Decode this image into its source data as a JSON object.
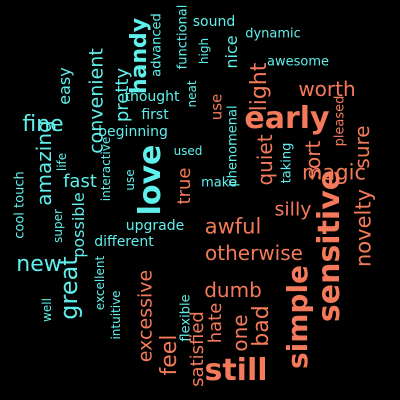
{
  "colors": {
    "background": "#000000",
    "cyan": "#5ff0ec",
    "coral": "#f47a5b"
  },
  "words": [
    {
      "text": "sound",
      "color": "cyan"
    },
    {
      "text": "dynamic",
      "color": "cyan"
    },
    {
      "text": "functional",
      "color": "cyan"
    },
    {
      "text": "high",
      "color": "cyan"
    },
    {
      "text": "advanced",
      "color": "cyan"
    },
    {
      "text": "handy",
      "color": "cyan"
    },
    {
      "text": "nice",
      "color": "cyan"
    },
    {
      "text": "awesome",
      "color": "cyan"
    },
    {
      "text": "easy",
      "color": "cyan"
    },
    {
      "text": "convenient",
      "color": "cyan"
    },
    {
      "text": "pretty",
      "color": "cyan"
    },
    {
      "text": "thought",
      "color": "cyan"
    },
    {
      "text": "neat",
      "color": "cyan"
    },
    {
      "text": "light",
      "color": "coral"
    },
    {
      "text": "worth",
      "color": "coral"
    },
    {
      "text": "fine",
      "color": "cyan"
    },
    {
      "text": "first",
      "color": "cyan"
    },
    {
      "text": "use",
      "color": "coral"
    },
    {
      "text": "early",
      "color": "coral"
    },
    {
      "text": "pleased",
      "color": "coral"
    },
    {
      "text": "amazing",
      "color": "cyan"
    },
    {
      "text": "beginning",
      "color": "cyan"
    },
    {
      "text": "phenomenal",
      "color": "cyan"
    },
    {
      "text": "sure",
      "color": "coral"
    },
    {
      "text": "life",
      "color": "cyan"
    },
    {
      "text": "interactive",
      "color": "cyan"
    },
    {
      "text": "used",
      "color": "cyan"
    },
    {
      "text": "quiet",
      "color": "coral"
    },
    {
      "text": "sort",
      "color": "coral"
    },
    {
      "text": "taking",
      "color": "cyan"
    },
    {
      "text": "magic",
      "color": "coral"
    },
    {
      "text": "cool touch",
      "color": "cyan"
    },
    {
      "text": "love",
      "color": "cyan"
    },
    {
      "text": "true",
      "color": "coral"
    },
    {
      "text": "make",
      "color": "cyan"
    },
    {
      "text": "fast",
      "color": "cyan"
    },
    {
      "text": "use",
      "color": "cyan"
    },
    {
      "text": "silly",
      "color": "coral"
    },
    {
      "text": "novelty",
      "color": "coral"
    },
    {
      "text": "super",
      "color": "cyan"
    },
    {
      "text": "possible",
      "color": "cyan"
    },
    {
      "text": "upgrade",
      "color": "cyan"
    },
    {
      "text": "sensitive",
      "color": "coral"
    },
    {
      "text": "awful",
      "color": "coral"
    },
    {
      "text": "different",
      "color": "cyan"
    },
    {
      "text": "new",
      "color": "cyan"
    },
    {
      "text": "otherwise",
      "color": "coral"
    },
    {
      "text": "great",
      "color": "cyan"
    },
    {
      "text": "excellent",
      "color": "cyan"
    },
    {
      "text": "excessive",
      "color": "coral"
    },
    {
      "text": "simple",
      "color": "coral"
    },
    {
      "text": "dumb",
      "color": "coral"
    },
    {
      "text": "well",
      "color": "cyan"
    },
    {
      "text": "intuitive",
      "color": "cyan"
    },
    {
      "text": "flexible",
      "color": "cyan"
    },
    {
      "text": "hate",
      "color": "coral"
    },
    {
      "text": "bad",
      "color": "coral"
    },
    {
      "text": "one",
      "color": "coral"
    },
    {
      "text": "feel",
      "color": "coral"
    },
    {
      "text": "satisfied",
      "color": "coral"
    },
    {
      "text": "still",
      "color": "coral"
    }
  ]
}
